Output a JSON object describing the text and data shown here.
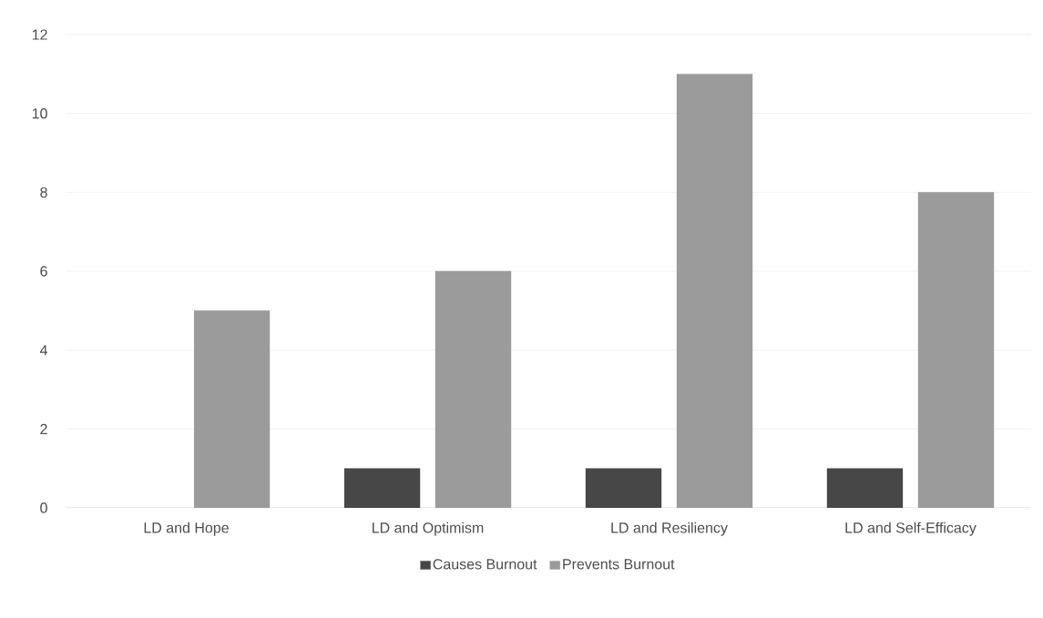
{
  "chart_data": {
    "type": "bar",
    "categories": [
      "LD and Hope",
      "LD and Optimism",
      "LD and Resiliency",
      "LD and Self-Efficacy"
    ],
    "series": [
      {
        "name": "Causes Burnout",
        "color": "#474747",
        "values": [
          null,
          1,
          1,
          1
        ]
      },
      {
        "name": "Prevents Burnout",
        "color": "#9b9b9b",
        "values": [
          5,
          6,
          11,
          8
        ]
      }
    ],
    "ylim": [
      0,
      12
    ],
    "yticks": [
      0,
      2,
      4,
      6,
      8,
      10,
      12
    ],
    "grid": "y",
    "legend": "bottom"
  }
}
